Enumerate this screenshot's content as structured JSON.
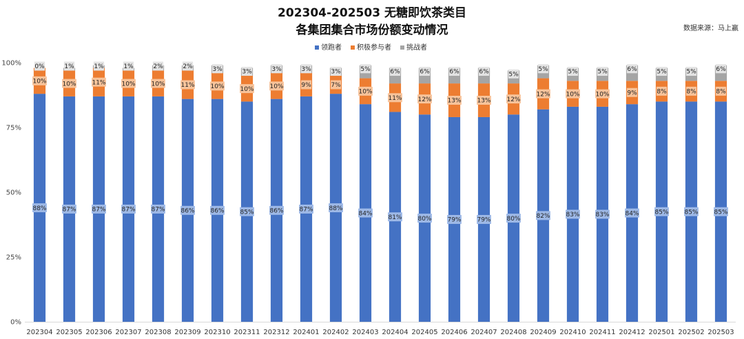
{
  "chart_data": {
    "type": "bar",
    "stacked": true,
    "title_lines": [
      "202304-202503 无糖即饮茶类目",
      "各集团集合市场份额变动情况"
    ],
    "source_note": "数据来源：马上赢",
    "categories": [
      "202304",
      "202305",
      "202306",
      "202307",
      "202308",
      "202309",
      "202310",
      "202311",
      "202312",
      "202401",
      "202402",
      "202403",
      "202404",
      "202405",
      "202406",
      "202407",
      "202408",
      "202409",
      "202410",
      "202411",
      "202412",
      "202501",
      "202502",
      "202503"
    ],
    "series": [
      {
        "name": "领跑者",
        "color": "#4472c4",
        "label_bg": "#9db8e6",
        "values": [
          88,
          87,
          87,
          87,
          87,
          86,
          86,
          85,
          86,
          87,
          88,
          84,
          81,
          80,
          79,
          79,
          80,
          82,
          83,
          83,
          84,
          85,
          85,
          85
        ]
      },
      {
        "name": "积极参与者",
        "color": "#ed7d31",
        "label_bg": "#f7c39a",
        "values": [
          10,
          10,
          11,
          10,
          10,
          11,
          10,
          10,
          10,
          9,
          7,
          10,
          11,
          12,
          13,
          13,
          12,
          12,
          10,
          10,
          9,
          8,
          8,
          8
        ]
      },
      {
        "name": "挑战者",
        "color": "#a5a5a5",
        "label_bg": "#e3e3e3",
        "values": [
          0,
          1,
          1,
          1,
          2,
          2,
          3,
          3,
          3,
          3,
          3,
          5,
          6,
          6,
          6,
          6,
          5,
          5,
          5,
          5,
          6,
          5,
          5,
          6
        ]
      }
    ],
    "y_ticks": [
      "0%",
      "25%",
      "50%",
      "75%",
      "100%"
    ],
    "y_tick_values": [
      0,
      25,
      50,
      75,
      100
    ],
    "ylim": [
      0,
      100
    ],
    "label_suffix": "%",
    "legend_position": "top-center",
    "grid": false
  }
}
